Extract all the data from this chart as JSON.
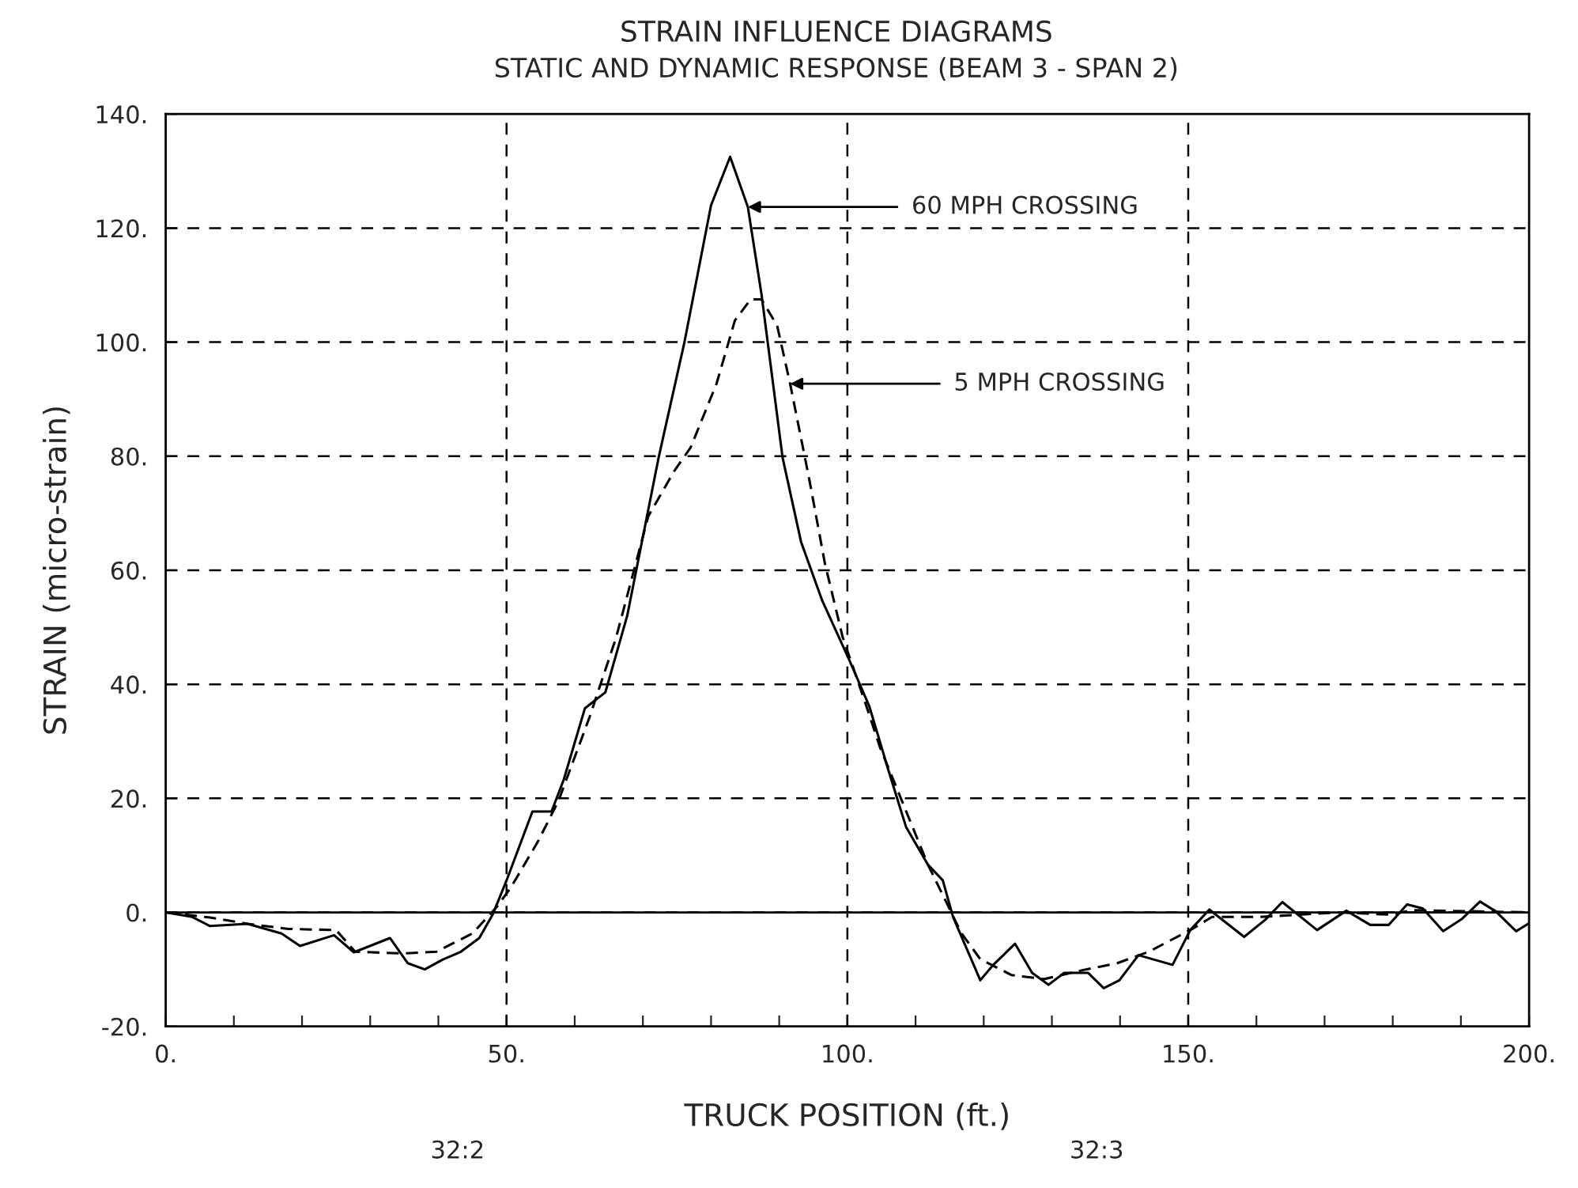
{
  "chart_data": {
    "type": "line",
    "title": "STRAIN INFLUENCE DIAGRAMS",
    "subtitle": "STATIC AND DYNAMIC RESPONSE (BEAM 3 - SPAN 2)",
    "xlabel": "TRUCK POSITION (ft.)",
    "ylabel": "STRAIN (micro-strain)",
    "series": [
      {
        "color": "#000000",
        "line_style": "solid",
        "x": [
          0,
          3.9,
          6.5,
          12,
          17,
          19.7,
          24.7,
          27.6,
          32.9,
          35.5,
          38,
          40.6,
          43.3,
          46,
          48,
          50,
          53.8,
          56.6,
          58.4,
          61.5,
          64.5,
          67.7,
          72.3,
          76.1,
          80,
          82.8,
          85.4,
          87.4,
          90.5,
          93.2,
          96.3,
          100.3,
          103.2,
          106,
          108.6,
          111.8,
          114,
          115.5,
          119.5,
          121.4,
          124.6,
          127.1,
          129.5,
          131.8,
          135.3,
          137.6,
          139.9,
          142.7,
          147.7,
          150.3,
          153.1,
          158.2,
          161.3,
          163.8,
          168.9,
          173.2,
          176.7,
          179.4,
          182.1,
          184.4,
          187.4,
          190.2,
          192.8,
          195.1,
          198.1,
          200
        ],
        "values": [
          0,
          -0.8,
          -2.4,
          -2,
          -3.7,
          -5.9,
          -4,
          -7,
          -4.5,
          -8.9,
          -10,
          -8.3,
          -6.9,
          -4.5,
          -0.3,
          5.6,
          17.7,
          17.7,
          23.3,
          35.8,
          38.6,
          52,
          79.7,
          100,
          124,
          132.5,
          123.7,
          108.4,
          79.7,
          65,
          54.7,
          44.2,
          36.2,
          25,
          15,
          8.4,
          5.6,
          -0.8,
          -11.9,
          -9.2,
          -5.5,
          -10.6,
          -12.7,
          -10.6,
          -10.6,
          -13.3,
          -11.9,
          -7.5,
          -9.2,
          -3.1,
          0.5,
          -4.3,
          -1.3,
          1.8,
          -3.1,
          0.3,
          -2.2,
          -2.2,
          1.4,
          0.7,
          -3.3,
          -1.1,
          1.9,
          0.2,
          -3.3,
          -1.9
        ]
      },
      {
        "color": "#000000",
        "line_style": "dashed",
        "x": [
          0,
          6.5,
          12,
          18,
          25,
          27.8,
          35,
          39.7,
          45,
          48.6,
          50.6,
          54.5,
          57.6,
          62.2,
          66.1,
          70.8,
          74.6,
          77,
          80.8,
          83.5,
          85.8,
          87.4,
          89.7,
          91.6,
          94.4,
          96.7,
          99.3,
          102.5,
          104.8,
          108.6,
          111.8,
          114.8,
          116.7,
          119.5,
          124.1,
          128.8,
          135,
          139.6,
          144.2,
          150.3,
          153.5,
          160.5,
          172.1,
          179.7,
          182.8,
          200
        ],
        "values": [
          0,
          -0.9,
          -2,
          -2.9,
          -3.1,
          -6.9,
          -7.2,
          -6.9,
          -3.7,
          1,
          4.3,
          12.2,
          19.5,
          34.3,
          48.3,
          69.5,
          77.4,
          81.5,
          92.7,
          103.8,
          107.5,
          107.5,
          102.9,
          92.7,
          76,
          61.2,
          48.3,
          37.2,
          28.9,
          17.8,
          8.4,
          1.1,
          -3.6,
          -8.2,
          -11,
          -11.7,
          -10,
          -8.9,
          -6.9,
          -3.1,
          -0.8,
          -0.8,
          0,
          -0.4,
          0.4,
          0
        ]
      }
    ],
    "xlim": [
      0,
      200
    ],
    "ylim": [
      -20,
      140
    ],
    "xticks": [
      {
        "value": 0,
        "label": "0."
      },
      {
        "value": 10,
        "label": null
      },
      {
        "value": 20,
        "label": null
      },
      {
        "value": 30,
        "label": null
      },
      {
        "value": 40,
        "label": null
      },
      {
        "value": 50,
        "label": "50."
      },
      {
        "value": 60,
        "label": null
      },
      {
        "value": 70,
        "label": null
      },
      {
        "value": 80,
        "label": null
      },
      {
        "value": 90,
        "label": null
      },
      {
        "value": 100,
        "label": "100."
      },
      {
        "value": 110,
        "label": null
      },
      {
        "value": 120,
        "label": null
      },
      {
        "value": 130,
        "label": null
      },
      {
        "value": 140,
        "label": null
      },
      {
        "value": 150,
        "label": "150."
      },
      {
        "value": 160,
        "label": null
      },
      {
        "value": 170,
        "label": null
      },
      {
        "value": 180,
        "label": null
      },
      {
        "value": 190,
        "label": null
      },
      {
        "value": 200,
        "label": "200."
      }
    ],
    "yticks": [
      {
        "value": -20,
        "label": "-20."
      },
      {
        "value": 0,
        "label": "0."
      },
      {
        "value": 20,
        "label": "20."
      },
      {
        "value": 40,
        "label": "40."
      },
      {
        "value": 60,
        "label": "60."
      },
      {
        "value": 80,
        "label": "80."
      },
      {
        "value": 100,
        "label": "100."
      },
      {
        "value": 120,
        "label": "120."
      },
      {
        "value": 140,
        "label": "140."
      }
    ],
    "grid": true,
    "ref_lines": [
      {
        "axis": "y",
        "value": 0,
        "line_style": "solid",
        "color": "#000000"
      }
    ],
    "annotations": [
      {
        "text": "60 MPH CROSSING",
        "x": 85.4,
        "y": 123.7
      },
      {
        "text": "5 MPH CROSSING",
        "x": 91.6,
        "y": 92.7
      },
      "32:2",
      "32:3"
    ]
  }
}
